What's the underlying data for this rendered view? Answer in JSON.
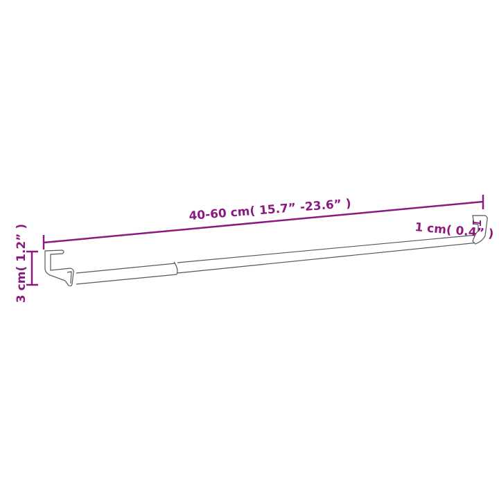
{
  "dimensions": {
    "length_label": "40-60 cm( 15.7”  -23.6” )",
    "height_label": "3 cm( 1.2” )",
    "depth_label": "1 cm( 0.4” )"
  },
  "colors": {
    "dimension": "#8b1a80",
    "outline": "#555555"
  }
}
